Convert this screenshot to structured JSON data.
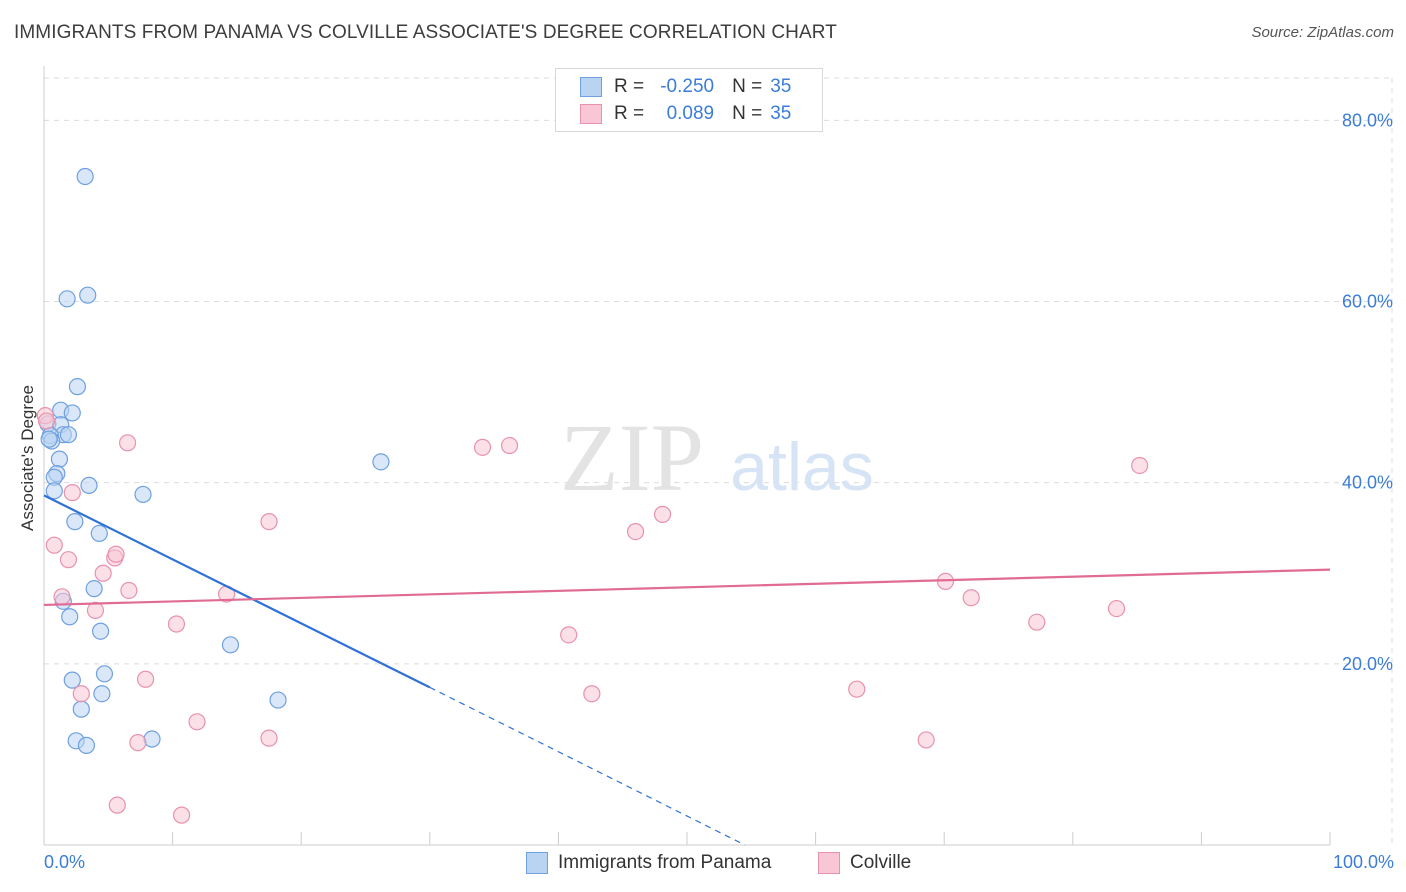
{
  "header": {
    "title": "IMMIGRANTS FROM PANAMA VS COLVILLE ASSOCIATE'S DEGREE CORRELATION CHART",
    "source": "Source: ZipAtlas.com"
  },
  "watermark": {
    "zip": "ZIP",
    "atlas": "atlas"
  },
  "legend": {
    "series": [
      {
        "r_label": "R =",
        "r_value": "-0.250",
        "n_label": "N =",
        "n_value": "35"
      },
      {
        "r_label": "R =",
        "r_value": "0.089",
        "n_label": "N =",
        "n_value": "35"
      }
    ]
  },
  "bottom_legend": {
    "items": [
      {
        "label": "Immigrants from Panama"
      },
      {
        "label": "Colville"
      }
    ]
  },
  "chart_data": {
    "type": "scatter",
    "title": "IMMIGRANTS FROM PANAMA VS COLVILLE ASSOCIATE'S DEGREE CORRELATION CHART",
    "xlabel": "",
    "ylabel": "Associate's Degree",
    "xlim": [
      0,
      100
    ],
    "ylim": [
      0,
      86
    ],
    "x_tick_labels": [
      "0.0%",
      "100.0%"
    ],
    "y_ticks": [
      20,
      40,
      60,
      80
    ],
    "y_tick_labels": [
      "20.0%",
      "40.0%",
      "60.0%",
      "80.0%"
    ],
    "grid": true,
    "colors": {
      "panama_fill": "#b9d3f3",
      "panama_stroke": "#6fa0e0",
      "panama_line": "#2f72d6",
      "colville_fill": "#f8c6d5",
      "colville_stroke": "#e892ad",
      "colville_line": "#e06b93",
      "tick_label": "#3b7dd8"
    },
    "series": [
      {
        "name": "Immigrants from Panama",
        "r": -0.25,
        "n": 35,
        "points": [
          [
            3.2,
            73.8
          ],
          [
            1.8,
            60.3
          ],
          [
            3.4,
            60.7
          ],
          [
            2.6,
            50.6
          ],
          [
            1.3,
            48.0
          ],
          [
            2.2,
            47.7
          ],
          [
            0.3,
            46.5
          ],
          [
            1.3,
            46.4
          ],
          [
            1.5,
            45.3
          ],
          [
            1.9,
            45.3
          ],
          [
            0.5,
            45.2
          ],
          [
            0.6,
            44.6
          ],
          [
            0.4,
            44.8
          ],
          [
            1.2,
            42.6
          ],
          [
            1.0,
            41.0
          ],
          [
            0.8,
            40.6
          ],
          [
            3.5,
            39.7
          ],
          [
            0.8,
            39.1
          ],
          [
            7.7,
            38.7
          ],
          [
            26.2,
            42.3
          ],
          [
            2.4,
            35.7
          ],
          [
            4.3,
            34.4
          ],
          [
            3.9,
            28.3
          ],
          [
            1.5,
            26.9
          ],
          [
            2.0,
            25.2
          ],
          [
            4.4,
            23.6
          ],
          [
            14.5,
            22.1
          ],
          [
            4.7,
            18.9
          ],
          [
            2.2,
            18.2
          ],
          [
            4.5,
            16.7
          ],
          [
            18.2,
            16.0
          ],
          [
            2.9,
            15.0
          ],
          [
            2.5,
            11.5
          ],
          [
            3.3,
            11.0
          ],
          [
            8.4,
            11.7
          ]
        ],
        "trend": {
          "solid_from": [
            0,
            38.6
          ],
          "solid_to": [
            30,
            17.4
          ],
          "dashed_to": [
            54.5,
            0
          ]
        }
      },
      {
        "name": "Colville",
        "r": 0.089,
        "n": 35,
        "points": [
          [
            0.1,
            47.4
          ],
          [
            0.2,
            46.8
          ],
          [
            6.5,
            44.4
          ],
          [
            34.1,
            43.9
          ],
          [
            36.2,
            44.1
          ],
          [
            85.2,
            41.9
          ],
          [
            2.2,
            38.9
          ],
          [
            17.5,
            35.7
          ],
          [
            48.1,
            36.5
          ],
          [
            46.0,
            34.6
          ],
          [
            0.8,
            33.1
          ],
          [
            1.9,
            31.5
          ],
          [
            5.5,
            31.7
          ],
          [
            5.6,
            32.1
          ],
          [
            4.6,
            30.0
          ],
          [
            6.6,
            28.1
          ],
          [
            14.2,
            27.7
          ],
          [
            1.4,
            27.4
          ],
          [
            4.0,
            25.9
          ],
          [
            72.1,
            27.3
          ],
          [
            70.1,
            29.1
          ],
          [
            77.2,
            24.6
          ],
          [
            83.4,
            26.1
          ],
          [
            10.3,
            24.4
          ],
          [
            40.8,
            23.2
          ],
          [
            7.9,
            18.3
          ],
          [
            2.9,
            16.7
          ],
          [
            42.6,
            16.7
          ],
          [
            63.2,
            17.2
          ],
          [
            11.9,
            13.6
          ],
          [
            17.5,
            11.8
          ],
          [
            7.3,
            11.3
          ],
          [
            68.6,
            11.6
          ],
          [
            5.7,
            4.4
          ],
          [
            10.7,
            3.3
          ]
        ],
        "trend": {
          "from": [
            0,
            26.5
          ],
          "to": [
            100,
            30.4
          ]
        }
      }
    ]
  }
}
